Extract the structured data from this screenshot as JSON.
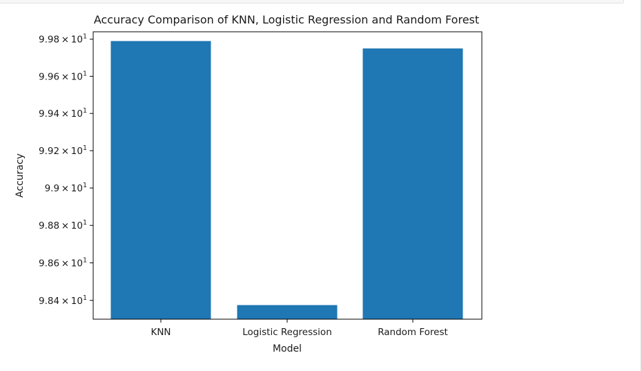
{
  "colors": {
    "bar": "#1f77b4",
    "axis": "#000000"
  },
  "chart_data": {
    "type": "bar",
    "title": "Accuracy Comparison of KNN, Logistic Regression and Random Forest",
    "xlabel": "Model",
    "ylabel": "Accuracy",
    "categories": [
      "KNN",
      "Logistic Regression",
      "Random Forest"
    ],
    "values": [
      99.79,
      98.375,
      99.75
    ],
    "ylim": [
      98.3,
      99.84
    ],
    "yscale": "log",
    "yticks": [
      {
        "value": 98.4,
        "mantissa": "9.84",
        "base": "10",
        "exp": "1"
      },
      {
        "value": 98.6,
        "mantissa": "9.86",
        "base": "10",
        "exp": "1"
      },
      {
        "value": 98.8,
        "mantissa": "9.88",
        "base": "10",
        "exp": "1"
      },
      {
        "value": 99.0,
        "mantissa": "9.9",
        "base": "10",
        "exp": "1"
      },
      {
        "value": 99.2,
        "mantissa": "9.92",
        "base": "10",
        "exp": "1"
      },
      {
        "value": 99.4,
        "mantissa": "9.94",
        "base": "10",
        "exp": "1"
      },
      {
        "value": 99.6,
        "mantissa": "9.96",
        "base": "10",
        "exp": "1"
      },
      {
        "value": 99.8,
        "mantissa": "9.98",
        "base": "10",
        "exp": "1"
      }
    ],
    "grid": false,
    "legend": "none"
  }
}
